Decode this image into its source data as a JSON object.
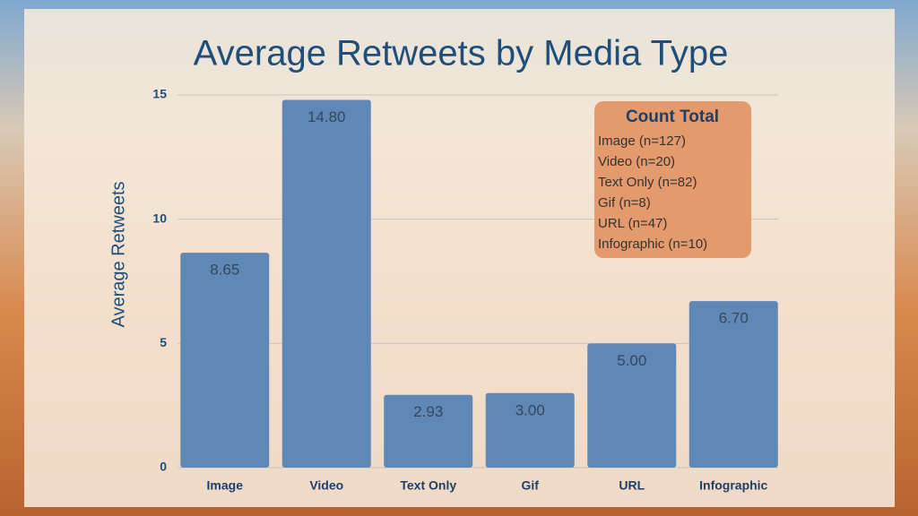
{
  "chart_data": {
    "type": "bar",
    "title": "Average Retweets by Media Type",
    "y_label": "Average Retweets",
    "categories": [
      "Image",
      "Video",
      "Text Only",
      "Gif",
      "URL",
      "Infographic"
    ],
    "values": [
      8.65,
      14.8,
      2.93,
      3,
      5,
      6.7
    ],
    "value_labels": [
      "8.65",
      "14.80",
      "2.93",
      "3.00",
      "5.00",
      "6.70"
    ],
    "color": "#5f88b6",
    "ylim": [
      0,
      15
    ],
    "yticks": [
      0,
      5,
      10,
      15
    ],
    "grid": true,
    "annotation": {
      "title": "Count Total",
      "lines": [
        "Image (n=127)",
        "Video (n=20)",
        "Text Only (n=82)",
        "Gif (n=8)",
        "URL (n=47)",
        "Infographic (n=10)"
      ]
    }
  }
}
